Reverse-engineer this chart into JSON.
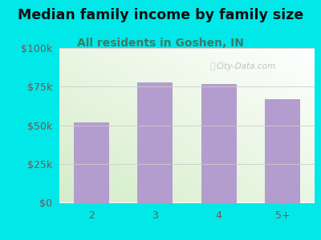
{
  "title": "Median family income by family size",
  "subtitle": "All residents in Goshen, IN",
  "categories": [
    "2",
    "3",
    "4",
    "5+"
  ],
  "values": [
    52000,
    78000,
    77000,
    67000
  ],
  "bar_color": "#b39dce",
  "background_color": "#00e8e8",
  "title_fontsize": 12.5,
  "subtitle_fontsize": 10,
  "tick_color": "#7a5050",
  "subtitle_color": "#3d7a6a",
  "ylim": [
    0,
    100000
  ],
  "yticks": [
    0,
    25000,
    50000,
    75000,
    100000
  ],
  "ytick_labels": [
    "$0",
    "$25k",
    "$50k",
    "$75k",
    "$100k"
  ],
  "watermark": "City-Data.com"
}
